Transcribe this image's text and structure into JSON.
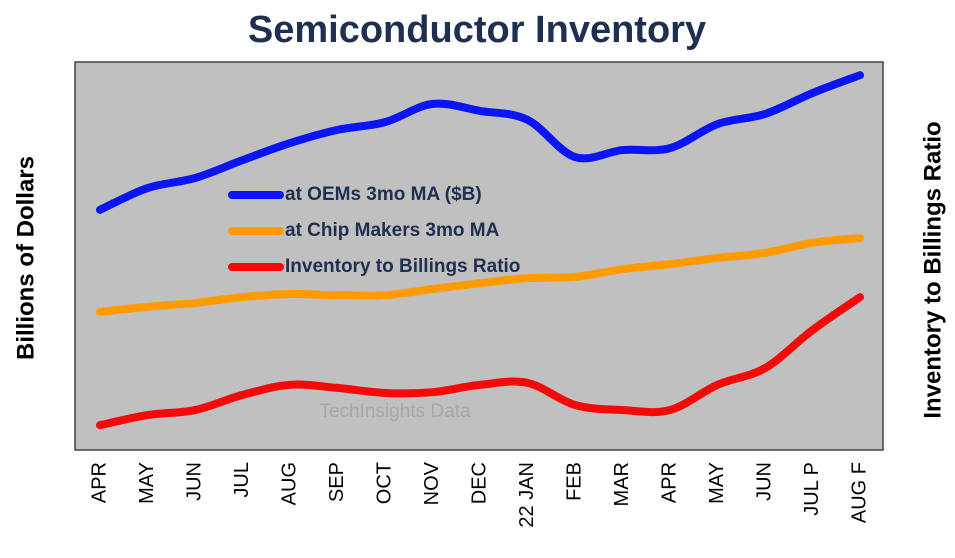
{
  "chart_data": {
    "type": "line",
    "title": "Semiconductor Inventory",
    "ylabel": "Billions of Dollars",
    "y2label": "Inventory  to Billings Ratio",
    "annotation": "TechInsights Data",
    "categories": [
      "APR",
      "MAY",
      "JUN",
      "JUL",
      "AUG",
      "SEP",
      "OCT",
      "NOV",
      "DEC",
      "22 JAN",
      "FEB",
      "MAR",
      "APR",
      "MAY",
      "JUN",
      "JUL P",
      "AUG F"
    ],
    "ylim": [
      0,
      100
    ],
    "y2lim": [
      0,
      100
    ],
    "legend": "upper left",
    "series": [
      {
        "name": "at OEMs 3mo MA ($B)",
        "color": "#0a14f5",
        "values": [
          61.9,
          67.5,
          70.1,
          74.7,
          79.1,
          82.5,
          84.5,
          89.2,
          87.4,
          85.1,
          75.5,
          77.3,
          77.8,
          84.0,
          86.6,
          92.0,
          96.6
        ]
      },
      {
        "name": "at Chip Makers 3mo MA",
        "color": "#ff9a00",
        "values": [
          35.6,
          36.9,
          37.9,
          39.4,
          40.2,
          39.9,
          39.9,
          41.5,
          43.0,
          44.3,
          44.6,
          46.6,
          47.9,
          49.5,
          50.8,
          53.4,
          54.6
        ]
      },
      {
        "name": "Inventory to Billings Ratio",
        "color": "#f50a0a",
        "axis": "y2",
        "values": [
          6.4,
          9.0,
          10.3,
          14.2,
          16.8,
          16.0,
          14.7,
          14.9,
          16.8,
          17.3,
          11.6,
          10.3,
          10.3,
          16.8,
          21.1,
          30.9,
          39.4
        ]
      }
    ]
  }
}
